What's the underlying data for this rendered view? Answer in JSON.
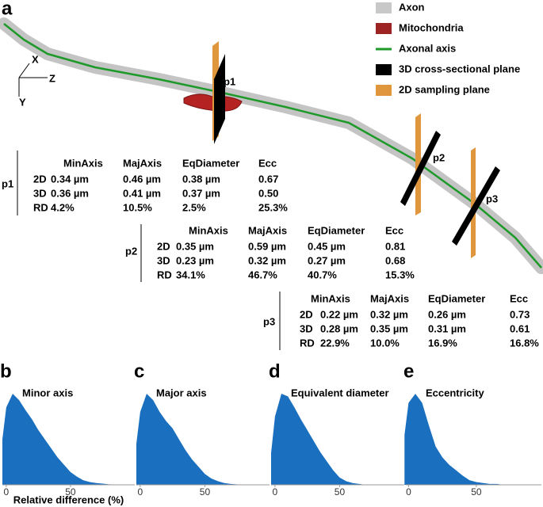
{
  "panel_a": {
    "letter": "a",
    "legend": [
      "Axon",
      "Mitochondria",
      "Axonal axis",
      "3D cross-sectional plane",
      "2D sampling plane"
    ],
    "legend_colors": [
      "#c8c8c8",
      "#9e2424",
      "#1e9a2a",
      "#000000",
      "#e0963c"
    ],
    "axes": [
      "X",
      "Z",
      "Y"
    ],
    "points": [
      "p1",
      "p2",
      "p3"
    ],
    "tables": [
      {
        "name": "p1",
        "columns": [
          "MinAxis",
          "MajAxis",
          "EqDiameter",
          "Ecc"
        ],
        "rows": [
          {
            "label": "2D",
            "cells": [
              "0.34 µm",
              "0.46 µm",
              "0.38 µm",
              "0.67"
            ]
          },
          {
            "label": "3D",
            "cells": [
              "0.36 µm",
              "0.41 µm",
              "0.37 µm",
              "0.50"
            ]
          },
          {
            "label": "RD",
            "cells": [
              "4.2%",
              "10.5%",
              "2.5%",
              "25.3%"
            ]
          }
        ]
      },
      {
        "name": "p2",
        "columns": [
          "MinAxis",
          "MajAxis",
          "EqDiameter",
          "Ecc"
        ],
        "rows": [
          {
            "label": "2D",
            "cells": [
              "0.35 µm",
              "0.59 µm",
              "0.45 µm",
              "0.81"
            ]
          },
          {
            "label": "3D",
            "cells": [
              "0.23 µm",
              "0.32 µm",
              "0.27 µm",
              "0.68"
            ]
          },
          {
            "label": "RD",
            "cells": [
              "34.1%",
              "46.7%",
              "40.7%",
              "15.3%"
            ]
          }
        ]
      },
      {
        "name": "p3",
        "columns": [
          "MinAxis",
          "MajAxis",
          "EqDiameter",
          "Ecc"
        ],
        "rows": [
          {
            "label": "2D",
            "cells": [
              "0.22 µm",
              "0.32 µm",
              "0.26 µm",
              "0.73"
            ]
          },
          {
            "label": "3D",
            "cells": [
              "0.28 µm",
              "0.35 µm",
              "0.31 µm",
              "0.61"
            ]
          },
          {
            "label": "RD",
            "cells": [
              "22.9%",
              "10.0%",
              "16.9%",
              "16.8%"
            ]
          }
        ]
      }
    ]
  },
  "chart_data": [
    {
      "type": "area",
      "letter": "b",
      "title": "Minor axis",
      "x_label": "Relative difference (%)",
      "color": "#1a6fbf",
      "x": [
        -3,
        0,
        5,
        10,
        15,
        20,
        25,
        30,
        35,
        40,
        45,
        50,
        55,
        60,
        65,
        70,
        80,
        90,
        100
      ],
      "values": [
        0.5,
        0.85,
        1.0,
        0.93,
        0.82,
        0.72,
        0.6,
        0.5,
        0.4,
        0.3,
        0.22,
        0.14,
        0.09,
        0.05,
        0.03,
        0.02,
        0.005,
        0,
        0
      ],
      "xlim": [
        -3,
        100
      ],
      "xticks": [
        0,
        50
      ],
      "ylim": [
        0,
        1
      ]
    },
    {
      "type": "area",
      "letter": "c",
      "title": "Major axis",
      "color": "#1a6fbf",
      "x": [
        -3,
        0,
        5,
        10,
        15,
        20,
        25,
        30,
        35,
        40,
        45,
        50,
        55,
        60,
        65,
        70,
        80,
        90,
        100
      ],
      "values": [
        0.45,
        0.8,
        1.0,
        0.93,
        0.8,
        0.7,
        0.62,
        0.5,
        0.38,
        0.28,
        0.2,
        0.12,
        0.07,
        0.04,
        0.02,
        0.01,
        0,
        0,
        0
      ],
      "xlim": [
        -3,
        100
      ],
      "xticks": [
        0,
        50
      ],
      "ylim": [
        0,
        1
      ]
    },
    {
      "type": "area",
      "letter": "d",
      "title": "Equivalent diameter",
      "color": "#1a6fbf",
      "x": [
        -3,
        0,
        5,
        10,
        15,
        20,
        25,
        30,
        35,
        40,
        45,
        50,
        55,
        60,
        65,
        70,
        80,
        90,
        100
      ],
      "values": [
        0.35,
        0.75,
        1.0,
        0.97,
        0.85,
        0.72,
        0.6,
        0.48,
        0.36,
        0.26,
        0.16,
        0.08,
        0.04,
        0.02,
        0.01,
        0,
        0,
        0,
        0
      ],
      "xlim": [
        -3,
        100
      ],
      "xticks": [
        0,
        50
      ],
      "ylim": [
        0,
        1
      ]
    },
    {
      "type": "area",
      "letter": "e",
      "title": "Eccentricity",
      "color": "#1a6fbf",
      "x": [
        -3,
        0,
        5,
        10,
        15,
        20,
        25,
        30,
        35,
        40,
        45,
        50,
        55,
        60,
        65,
        70,
        80,
        90,
        100
      ],
      "values": [
        0.55,
        0.9,
        1.0,
        0.9,
        0.65,
        0.42,
        0.3,
        0.22,
        0.16,
        0.1,
        0.05,
        0.03,
        0.02,
        0.01,
        0.01,
        0,
        0,
        0,
        0
      ],
      "xlim": [
        -2,
        98
      ],
      "xticks": [
        0,
        50
      ],
      "ylim": [
        0,
        1
      ]
    }
  ]
}
